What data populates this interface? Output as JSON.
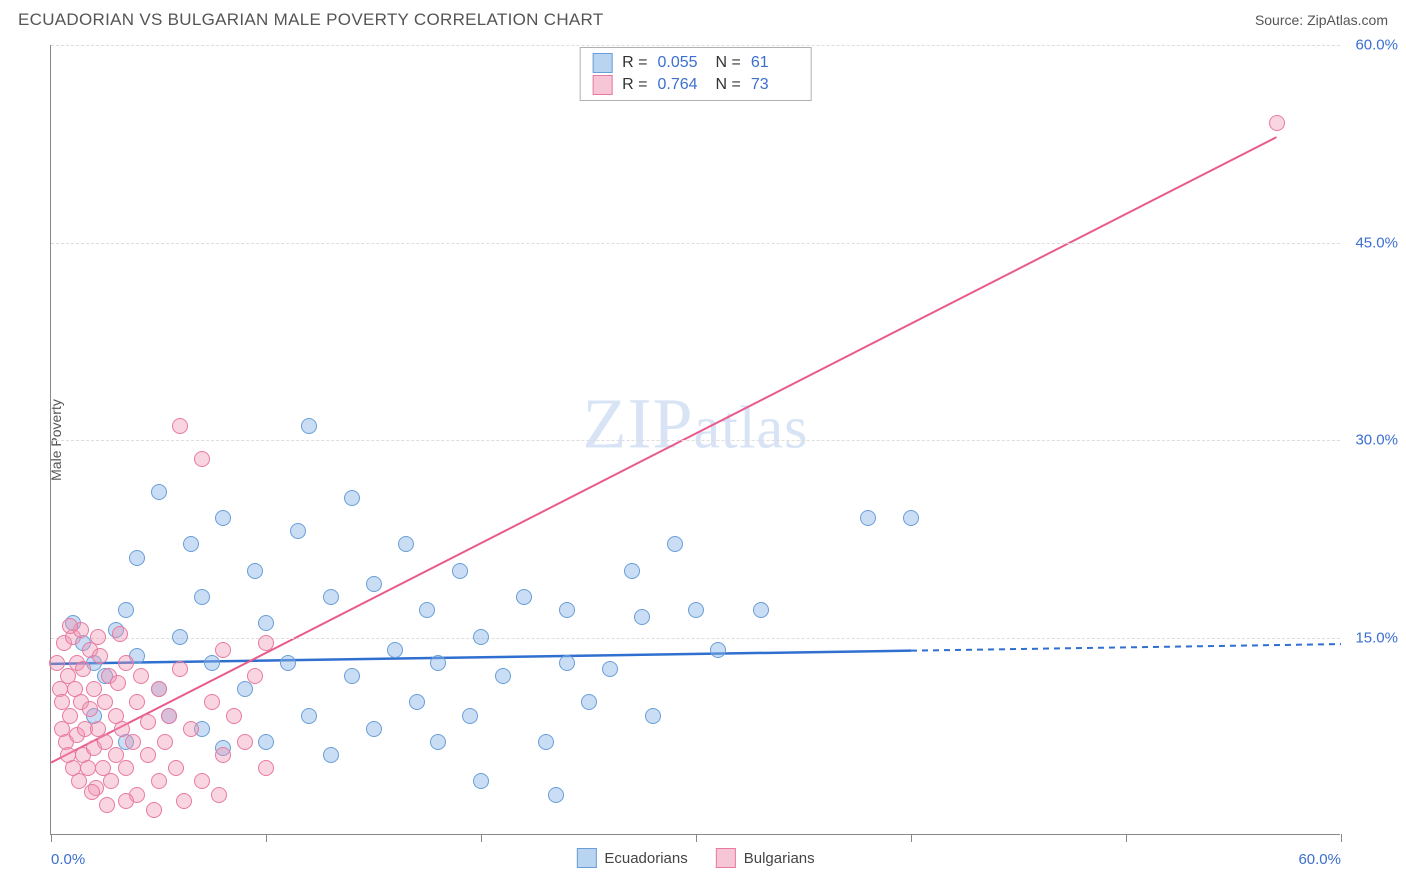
{
  "header": {
    "title": "ECUADORIAN VS BULGARIAN MALE POVERTY CORRELATION CHART",
    "source": "Source: ZipAtlas.com"
  },
  "chart": {
    "type": "scatter",
    "y_axis_label": "Male Poverty",
    "watermark_a": "ZIP",
    "watermark_b": "atlas",
    "xlim": [
      0,
      60
    ],
    "ylim": [
      0,
      60
    ],
    "x_ticks": [
      0,
      10,
      20,
      30,
      40,
      50,
      60
    ],
    "x_tick_labels": {
      "0": "0.0%",
      "60": "60.0%"
    },
    "y_ticks": [
      15,
      30,
      45,
      60
    ],
    "y_tick_labels": {
      "15": "15.0%",
      "30": "30.0%",
      "45": "45.0%",
      "60": "60.0%"
    },
    "grid_color": "#dddddd",
    "axis_color": "#888888",
    "background_color": "#ffffff",
    "tick_label_color": "#3b6fd0",
    "point_radius": 8,
    "series": [
      {
        "name": "Ecuadorians",
        "fill_color": "rgba(135,180,230,0.45)",
        "stroke_color": "#6a9ed8",
        "swatch_fill": "#b8d4f0",
        "swatch_border": "#6a9ed8",
        "stats": {
          "R_label": "R =",
          "R": "0.055",
          "N_label": "N =",
          "N": "61"
        },
        "trend": {
          "x1": 0,
          "y1": 13.0,
          "x2": 40,
          "y2": 14.0,
          "dash_from": 40,
          "dash_x2": 60,
          "dash_y2": 14.5,
          "color": "#2f6fd0",
          "width": 2.5
        },
        "points": [
          [
            1,
            16
          ],
          [
            1.5,
            14.5
          ],
          [
            2,
            13
          ],
          [
            2,
            9
          ],
          [
            2.5,
            12
          ],
          [
            3,
            15.5
          ],
          [
            3.5,
            17
          ],
          [
            3.5,
            7
          ],
          [
            4,
            13.5
          ],
          [
            4,
            21
          ],
          [
            5,
            11
          ],
          [
            5,
            26
          ],
          [
            5.5,
            9
          ],
          [
            6,
            15
          ],
          [
            6.5,
            22
          ],
          [
            7,
            8
          ],
          [
            7,
            18
          ],
          [
            7.5,
            13
          ],
          [
            8,
            6.5
          ],
          [
            8,
            24
          ],
          [
            9,
            11
          ],
          [
            9.5,
            20
          ],
          [
            10,
            7
          ],
          [
            10,
            16
          ],
          [
            11,
            13
          ],
          [
            11.5,
            23
          ],
          [
            12,
            9
          ],
          [
            12,
            31
          ],
          [
            13,
            6
          ],
          [
            13,
            18
          ],
          [
            14,
            12
          ],
          [
            14,
            25.5
          ],
          [
            15,
            8
          ],
          [
            15,
            19
          ],
          [
            16,
            14
          ],
          [
            16.5,
            22
          ],
          [
            17,
            10
          ],
          [
            17.5,
            17
          ],
          [
            18,
            7
          ],
          [
            18,
            13
          ],
          [
            19,
            20
          ],
          [
            19.5,
            9
          ],
          [
            20,
            15
          ],
          [
            20,
            4
          ],
          [
            21,
            12
          ],
          [
            22,
            18
          ],
          [
            23,
            7
          ],
          [
            23.5,
            3
          ],
          [
            24,
            13
          ],
          [
            24,
            17
          ],
          [
            25,
            10
          ],
          [
            26,
            12.5
          ],
          [
            27,
            20
          ],
          [
            27.5,
            16.5
          ],
          [
            28,
            9
          ],
          [
            29,
            22
          ],
          [
            30,
            17
          ],
          [
            31,
            14
          ],
          [
            33,
            17
          ],
          [
            38,
            24
          ],
          [
            40,
            24
          ]
        ]
      },
      {
        "name": "Bulgarians",
        "fill_color": "rgba(240,150,180,0.40)",
        "stroke_color": "#e87aa0",
        "swatch_fill": "#f6c6d7",
        "swatch_border": "#e87aa0",
        "stats": {
          "R_label": "R =",
          "R": "0.764",
          "N_label": "N =",
          "N": "73"
        },
        "trend": {
          "x1": 0,
          "y1": 5.5,
          "x2": 57,
          "y2": 53,
          "color": "#e85b8c",
          "width": 2
        },
        "points": [
          [
            0.3,
            13
          ],
          [
            0.4,
            11
          ],
          [
            0.5,
            10
          ],
          [
            0.5,
            8
          ],
          [
            0.6,
            14.5
          ],
          [
            0.7,
            7
          ],
          [
            0.8,
            12
          ],
          [
            0.8,
            6
          ],
          [
            0.9,
            9
          ],
          [
            1,
            15
          ],
          [
            1,
            5
          ],
          [
            1.1,
            11
          ],
          [
            1.2,
            7.5
          ],
          [
            1.2,
            13
          ],
          [
            1.3,
            4
          ],
          [
            1.4,
            10
          ],
          [
            1.5,
            6
          ],
          [
            1.5,
            12.5
          ],
          [
            1.6,
            8
          ],
          [
            1.7,
            5
          ],
          [
            1.8,
            9.5
          ],
          [
            1.8,
            14
          ],
          [
            2,
            6.5
          ],
          [
            2,
            11
          ],
          [
            2.1,
            3.5
          ],
          [
            2.2,
            8
          ],
          [
            2.3,
            13.5
          ],
          [
            2.4,
            5
          ],
          [
            2.5,
            10
          ],
          [
            2.5,
            7
          ],
          [
            2.7,
            12
          ],
          [
            2.8,
            4
          ],
          [
            3,
            9
          ],
          [
            3,
            6
          ],
          [
            3.1,
            11.5
          ],
          [
            3.3,
            8
          ],
          [
            3.5,
            5
          ],
          [
            3.5,
            13
          ],
          [
            3.8,
            7
          ],
          [
            4,
            10
          ],
          [
            4,
            3
          ],
          [
            4.2,
            12
          ],
          [
            4.5,
            6
          ],
          [
            4.5,
            8.5
          ],
          [
            5,
            4
          ],
          [
            5,
            11
          ],
          [
            5.3,
            7
          ],
          [
            5.5,
            9
          ],
          [
            5.8,
            5
          ],
          [
            6,
            12.5
          ],
          [
            6,
            31
          ],
          [
            6.5,
            8
          ],
          [
            7,
            4
          ],
          [
            7,
            28.5
          ],
          [
            7.5,
            10
          ],
          [
            8,
            6
          ],
          [
            8,
            14
          ],
          [
            8.5,
            9
          ],
          [
            9,
            7
          ],
          [
            9.5,
            12
          ],
          [
            10,
            5
          ],
          [
            10,
            14.5
          ],
          [
            3.5,
            2.5
          ],
          [
            4.8,
            1.8
          ],
          [
            2.2,
            15
          ],
          [
            1.4,
            15.5
          ],
          [
            0.9,
            15.8
          ],
          [
            3.2,
            15.2
          ],
          [
            2.6,
            2.2
          ],
          [
            1.9,
            3.2
          ],
          [
            6.2,
            2.5
          ],
          [
            7.8,
            3
          ],
          [
            57,
            54
          ]
        ]
      }
    ],
    "bottom_legend": [
      {
        "label": "Ecuadorians",
        "fill": "#b8d4f0",
        "border": "#6a9ed8"
      },
      {
        "label": "Bulgarians",
        "fill": "#f6c6d7",
        "border": "#e87aa0"
      }
    ]
  }
}
